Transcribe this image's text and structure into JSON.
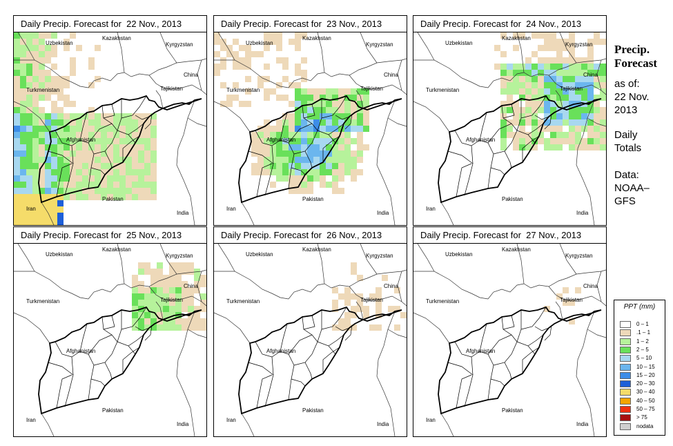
{
  "side": {
    "title_line1": "Precip.",
    "title_line2": "Forecast",
    "asof": "as of:",
    "date_line1": "22 Nov.",
    "date_line2": "2013",
    "daily1": "Daily",
    "daily2": "Totals",
    "data1": "Data:",
    "data2": "NOAA–",
    "data3": "GFS"
  },
  "labels": {
    "uzbekistan": "Uzbekistan",
    "kazakhstan": "Kazakhstan",
    "kyrgyzstan": "Kyrgyzstan",
    "china": "China",
    "tajikistan": "Tajikistan",
    "turkmenistan": "Turkmenistan",
    "afghanistan": "Afghanistan",
    "pakistan": "Pakistan",
    "iran": "Iran",
    "india": "India"
  },
  "panels": [
    {
      "title": "Daily Precip. Forecast for  22 Nov., 2013",
      "intensity": 1.0,
      "profile": "west"
    },
    {
      "title": "Daily Precip. Forecast for  23 Nov., 2013",
      "intensity": 1.0,
      "profile": "central"
    },
    {
      "title": "Daily Precip. Forecast for  24 Nov., 2013",
      "intensity": 0.6,
      "profile": "north"
    },
    {
      "title": "Daily Precip. Forecast for  25 Nov., 2013",
      "intensity": 0.3,
      "profile": "northeast"
    },
    {
      "title": "Daily Precip. Forecast for  26 Nov., 2013",
      "intensity": 0.2,
      "profile": "northeast"
    },
    {
      "title": "Daily Precip. Forecast for  27 Nov., 2013",
      "intensity": 0.15,
      "profile": "northeast"
    }
  ],
  "legend": {
    "title": "PPT (mm)",
    "items": [
      {
        "label": "0 – 1",
        "color": "#ffffff"
      },
      {
        "label": ".1 – 1",
        "color": "#eed9b9"
      },
      {
        "label": "1 – 2",
        "color": "#b6f29b"
      },
      {
        "label": "2 – 5",
        "color": "#69e05a"
      },
      {
        "label": "5 – 10",
        "color": "#a8d8f0"
      },
      {
        "label": "10 – 15",
        "color": "#6bb6ee"
      },
      {
        "label": "15 – 20",
        "color": "#3d8de8"
      },
      {
        "label": "20 – 30",
        "color": "#1d5fd8"
      },
      {
        "label": "30 – 40",
        "color": "#f5dc6a"
      },
      {
        "label": "40 – 50",
        "color": "#f5a300"
      },
      {
        "label": "50 – 75",
        "color": "#f03010"
      },
      {
        "label": "> 75",
        "color": "#a81010"
      },
      {
        "label": "nodata",
        "color": "#cfcfcf"
      }
    ]
  }
}
